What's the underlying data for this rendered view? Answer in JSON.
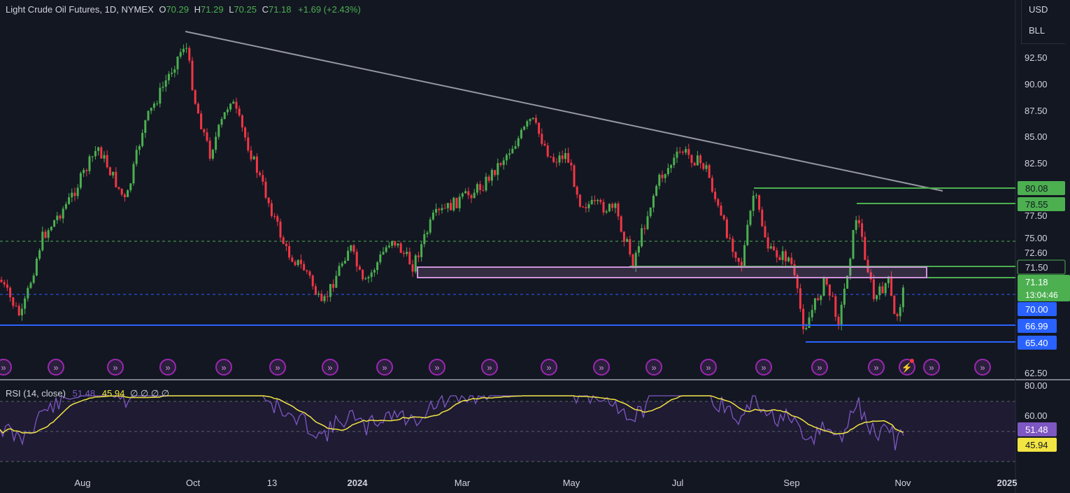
{
  "legend": {
    "symbol": "Light Crude Oil Futures, 1D, NYMEX",
    "open_label": "O",
    "open": "70.29",
    "high_label": "H",
    "high": "71.29",
    "low_label": "L",
    "low": "70.25",
    "close_label": "C",
    "close": "71.18",
    "change": "+1.69 (+2.43%)"
  },
  "units": [
    "USD",
    "BLL"
  ],
  "price_axis": [
    "92.50",
    "90.00",
    "87.50",
    "85.00",
    "82.50",
    "77.50",
    "75.00",
    "72.60",
    "62.50"
  ],
  "price_badges": [
    {
      "text": "80.08",
      "color": "#4caf50"
    },
    {
      "text": "78.55",
      "color": "#4caf50"
    },
    {
      "text": "71.50",
      "color": "#4caf50"
    },
    {
      "text": "71.18",
      "color": "#4caf50"
    },
    {
      "text": "13:04:46",
      "color": "#4caf50"
    },
    {
      "text": "70.00",
      "color": "#2962ff"
    },
    {
      "text": "66.99",
      "color": "#2962ff"
    },
    {
      "text": "65.40",
      "color": "#2962ff"
    }
  ],
  "time_axis": [
    "Aug",
    "Oct",
    "13",
    "2024",
    "Mar",
    "May",
    "Jul",
    "Sep",
    "Nov",
    "2025"
  ],
  "rsi": {
    "name": "RSI (14, close)",
    "value": "51.48",
    "ma_value": "45.94",
    "extras": "∅ ∅ ∅ ∅",
    "axis": [
      "80.00",
      "60.00"
    ],
    "badge_rsi": "51.48",
    "badge_ma": "45.94"
  },
  "colors": {
    "background": "#131722",
    "up": "#4caf50",
    "down": "#f23645",
    "trendline": "#9598a1",
    "support_blue": "#2962ff",
    "zone": "#ce93d8",
    "rsi_line": "#7e57c2",
    "rsi_ma": "#f2e442",
    "event_icon": "#9c27b0"
  },
  "icons": [
    "event-icon",
    "flash-event-icon"
  ]
}
